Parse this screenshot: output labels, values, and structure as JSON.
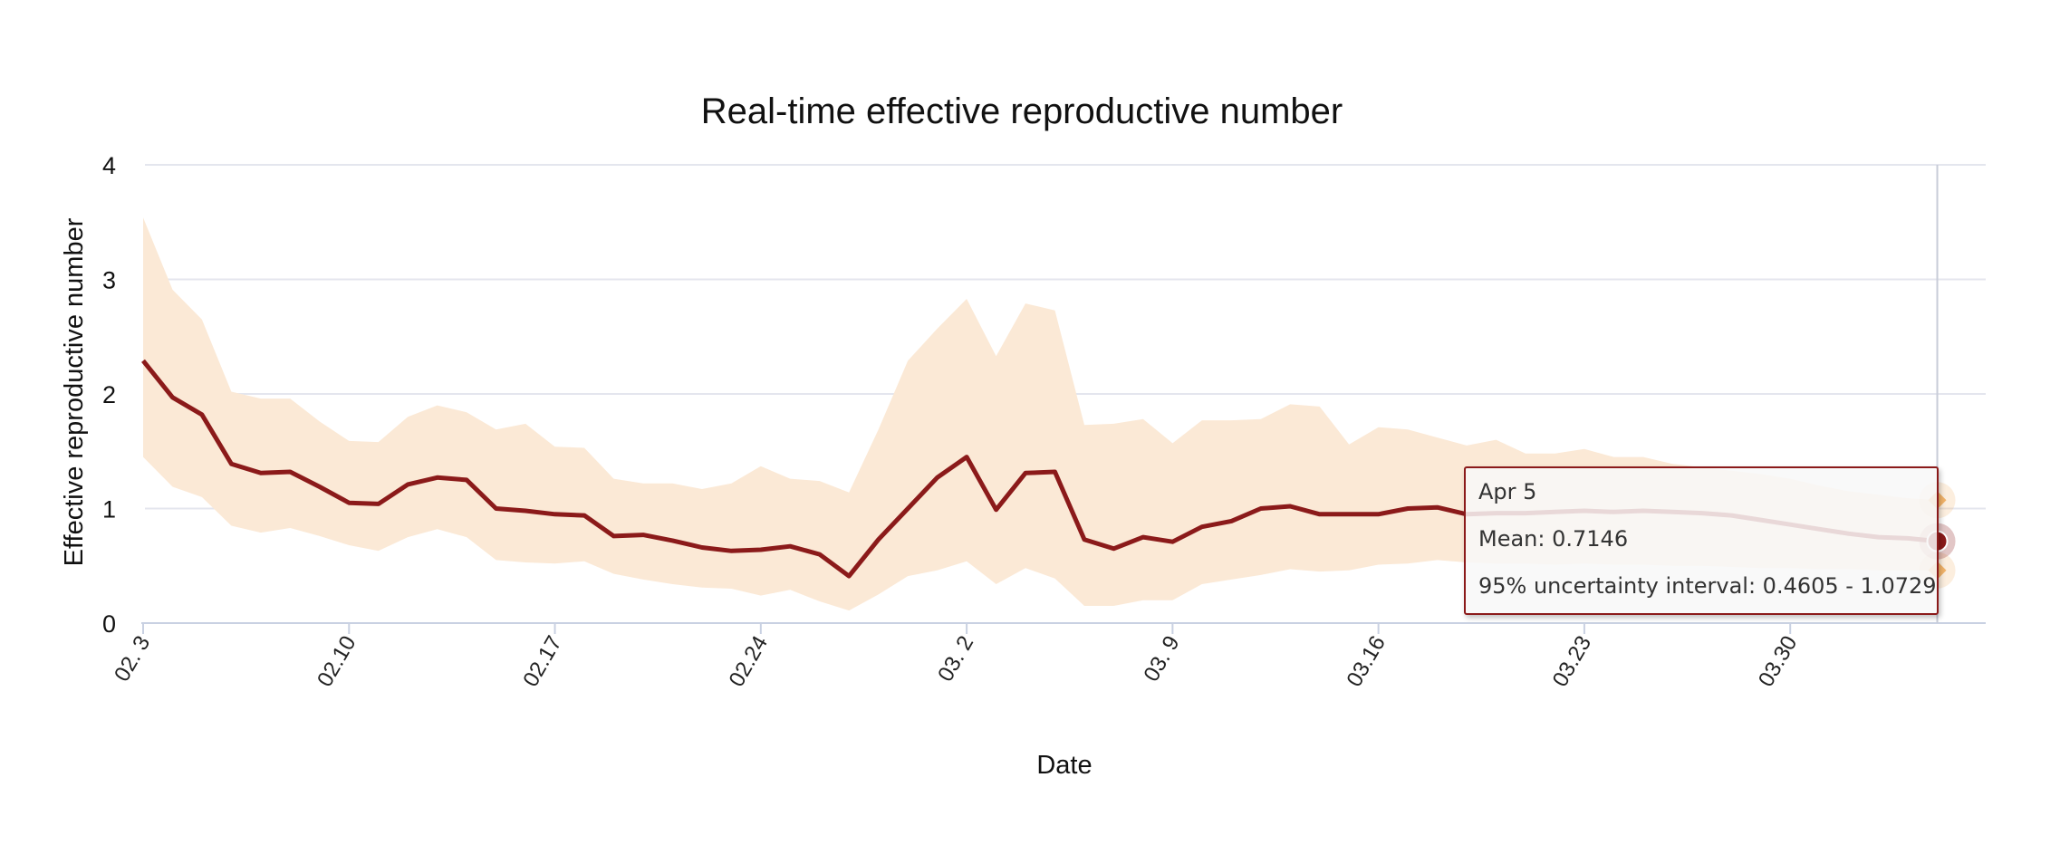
{
  "chart_data": {
    "type": "line",
    "title": "Real-time effective reproductive number",
    "xlabel": "Date",
    "ylabel": "Effective reproductive number",
    "ylim": [
      0,
      4
    ],
    "yticks": [
      "0",
      "1",
      "2",
      "3",
      "4"
    ],
    "x_start": "2020-02-03",
    "x_end": "2020-04-05",
    "xticks": [
      {
        "date": "2020-02-03",
        "label": "02. 3"
      },
      {
        "date": "2020-02-10",
        "label": "02.10"
      },
      {
        "date": "2020-02-17",
        "label": "02.17"
      },
      {
        "date": "2020-02-24",
        "label": "02.24"
      },
      {
        "date": "2020-03-02",
        "label": "03. 2"
      },
      {
        "date": "2020-03-09",
        "label": "03. 9"
      },
      {
        "date": "2020-03-16",
        "label": "03.16"
      },
      {
        "date": "2020-03-23",
        "label": "03.23"
      },
      {
        "date": "2020-03-30",
        "label": "03.30"
      }
    ],
    "grid": true,
    "legend": "none",
    "colors": {
      "line": "#8b1a1a",
      "band": "#fbe9d6",
      "grid": "#e4e6ee",
      "marker": "#8b1a1a",
      "bound_marker": "#f2b36a"
    },
    "mean": [
      2.29,
      1.97,
      1.82,
      1.39,
      1.31,
      1.32,
      1.19,
      1.05,
      1.04,
      1.21,
      1.27,
      1.25,
      1.0,
      0.98,
      0.95,
      0.94,
      0.76,
      0.77,
      0.72,
      0.66,
      0.63,
      0.64,
      0.67,
      0.6,
      0.41,
      0.73,
      1.0,
      1.27,
      1.45,
      0.99,
      1.31,
      1.32,
      0.73,
      0.65,
      0.75,
      0.71,
      0.84,
      0.89,
      1.0,
      1.02,
      0.95,
      0.95,
      0.95,
      1.0,
      1.01,
      0.95,
      0.96,
      0.96,
      0.97,
      0.98,
      0.97,
      0.98,
      0.97,
      0.96,
      0.94,
      0.9,
      0.86,
      0.82,
      0.78,
      0.75,
      0.74,
      0.7146
    ],
    "lower": [
      1.45,
      1.19,
      1.1,
      0.85,
      0.79,
      0.83,
      0.76,
      0.68,
      0.63,
      0.75,
      0.82,
      0.75,
      0.55,
      0.53,
      0.52,
      0.54,
      0.43,
      0.38,
      0.34,
      0.31,
      0.3,
      0.24,
      0.29,
      0.19,
      0.11,
      0.25,
      0.41,
      0.46,
      0.54,
      0.34,
      0.48,
      0.39,
      0.15,
      0.15,
      0.2,
      0.2,
      0.34,
      0.38,
      0.42,
      0.47,
      0.45,
      0.46,
      0.51,
      0.52,
      0.55,
      0.53,
      0.52,
      0.52,
      0.51,
      0.52,
      0.51,
      0.51,
      0.5,
      0.5,
      0.49,
      0.48,
      0.48,
      0.47,
      0.47,
      0.46,
      0.46,
      0.4605
    ],
    "upper": [
      3.54,
      2.91,
      2.65,
      2.02,
      1.96,
      1.96,
      1.76,
      1.59,
      1.58,
      1.8,
      1.9,
      1.84,
      1.69,
      1.74,
      1.54,
      1.53,
      1.26,
      1.22,
      1.22,
      1.17,
      1.22,
      1.37,
      1.26,
      1.24,
      1.14,
      1.69,
      2.29,
      2.57,
      2.83,
      2.33,
      2.79,
      2.73,
      1.73,
      1.74,
      1.78,
      1.57,
      1.77,
      1.77,
      1.78,
      1.91,
      1.89,
      1.56,
      1.71,
      1.69,
      1.62,
      1.55,
      1.6,
      1.48,
      1.48,
      1.52,
      1.45,
      1.45,
      1.39,
      1.36,
      1.33,
      1.3,
      1.26,
      1.2,
      1.15,
      1.12,
      1.09,
      1.0729
    ]
  },
  "tooltip": {
    "date": "Apr 5",
    "mean_text": "Mean: 0.7146",
    "interval_text": "95% uncertainty interval: 0.4605 - 1.0729"
  }
}
